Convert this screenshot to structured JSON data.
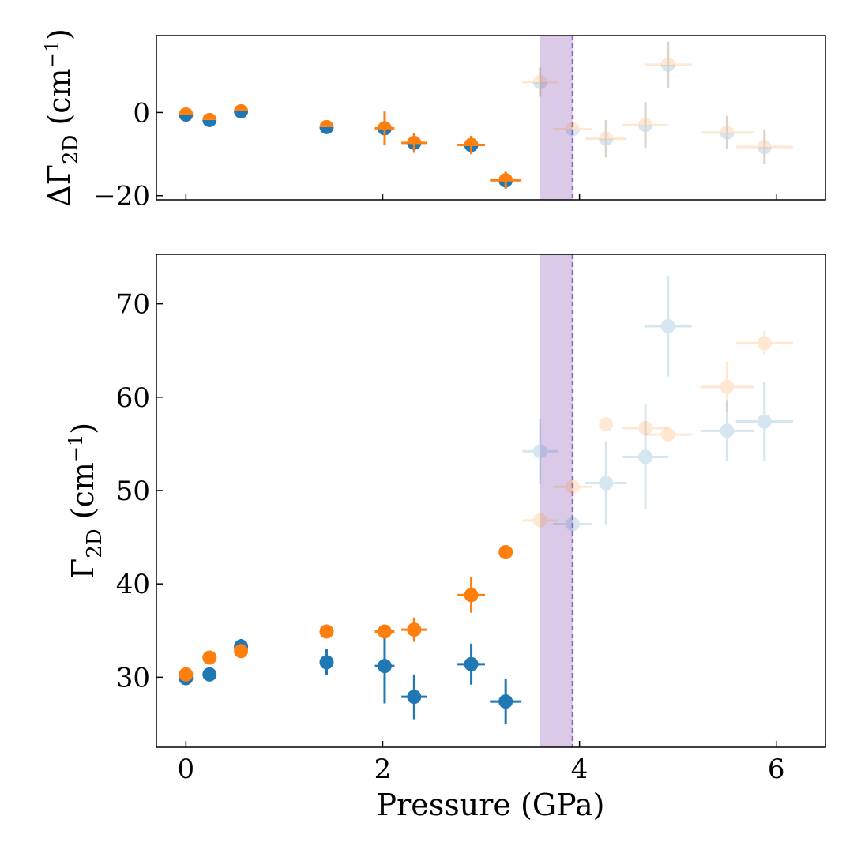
{
  "chart_data": {
    "type": "scatter",
    "colors": {
      "blue": "#1f77b4",
      "orange": "#ff7f0e",
      "band": "#9467bd"
    },
    "transition": {
      "band_range": [
        3.6,
        3.93
      ],
      "dashed_x": 3.93
    },
    "xaxis": {
      "label": "Pressure (GPa)",
      "xlim": [
        -0.3,
        6.5
      ],
      "ticks": [
        0,
        2,
        4,
        6
      ],
      "tick_labels": [
        "0",
        "2",
        "4",
        "6"
      ]
    },
    "panels": [
      {
        "id": "top",
        "ylabel_main": "ΔΓ",
        "ylabel_sub": "2D",
        "ylabel_unit": " (cm",
        "ylabel_sup": "−1",
        "ylabel_close": ")",
        "ylim": [
          -21,
          18.5
        ],
        "ticks": [
          0,
          -20
        ],
        "tick_labels": [
          "0",
          "−20"
        ],
        "series": [
          {
            "name": "blue",
            "color": "#1f77b4",
            "style": "lower-half",
            "points": [
              {
                "x": 0.0,
                "y": -0.5,
                "xerr": 0,
                "yerr": 0,
                "faded": false
              },
              {
                "x": 0.24,
                "y": -1.8,
                "xerr": 0,
                "yerr": 0,
                "faded": false
              },
              {
                "x": 0.56,
                "y": 0.3,
                "xerr": 0,
                "yerr": 0,
                "faded": false
              },
              {
                "x": 1.43,
                "y": -3.5,
                "xerr": 0,
                "yerr": 0,
                "faded": false
              },
              {
                "x": 2.02,
                "y": -3.8,
                "xerr": 0,
                "yerr": 4.0,
                "faded": false
              },
              {
                "x": 2.32,
                "y": -7.3,
                "xerr": 0,
                "yerr": 2.4,
                "faded": false
              },
              {
                "x": 2.9,
                "y": -7.8,
                "xerr": 0,
                "yerr": 2.2,
                "faded": false
              },
              {
                "x": 3.25,
                "y": -16.3,
                "xerr": 0,
                "yerr": 2.0,
                "faded": false
              },
              {
                "x": 3.6,
                "y": 7.3,
                "xerr": 0,
                "yerr": 3.5,
                "faded": true
              },
              {
                "x": 3.93,
                "y": -4.0,
                "xerr": 0,
                "yerr": 0,
                "faded": true
              },
              {
                "x": 4.27,
                "y": -6.3,
                "xerr": 0,
                "yerr": 4.5,
                "faded": true
              },
              {
                "x": 4.67,
                "y": -3.0,
                "xerr": 0,
                "yerr": 5.5,
                "faded": true
              },
              {
                "x": 4.9,
                "y": 11.5,
                "xerr": 0,
                "yerr": 5.5,
                "faded": true
              },
              {
                "x": 5.5,
                "y": -4.8,
                "xerr": 0,
                "yerr": 4.0,
                "faded": true
              },
              {
                "x": 5.88,
                "y": -8.3,
                "xerr": 0,
                "yerr": 4.0,
                "faded": true
              }
            ]
          },
          {
            "name": "orange",
            "color": "#ff7f0e",
            "style": "upper-half",
            "points": [
              {
                "x": 0.0,
                "y": -0.5,
                "xerr": 0,
                "yerr": 0,
                "faded": false
              },
              {
                "x": 0.24,
                "y": -1.8,
                "xerr": 0,
                "yerr": 0,
                "faded": false
              },
              {
                "x": 0.56,
                "y": 0.3,
                "xerr": 0,
                "yerr": 0,
                "faded": false
              },
              {
                "x": 1.43,
                "y": -3.5,
                "xerr": 0,
                "yerr": 0,
                "faded": false
              },
              {
                "x": 2.02,
                "y": -3.8,
                "xerr": 0.1,
                "yerr": 4.0,
                "faded": false
              },
              {
                "x": 2.32,
                "y": -7.3,
                "xerr": 0.13,
                "yerr": 2.4,
                "faded": false
              },
              {
                "x": 2.9,
                "y": -7.8,
                "xerr": 0.14,
                "yerr": 2.2,
                "faded": false
              },
              {
                "x": 3.25,
                "y": -16.3,
                "xerr": 0.16,
                "yerr": 2.0,
                "faded": false
              },
              {
                "x": 3.6,
                "y": 7.3,
                "xerr": 0.18,
                "yerr": 3.5,
                "faded": true
              },
              {
                "x": 3.93,
                "y": -4.0,
                "xerr": 0.2,
                "yerr": 0,
                "faded": true
              },
              {
                "x": 4.27,
                "y": -6.3,
                "xerr": 0.21,
                "yerr": 4.5,
                "faded": true
              },
              {
                "x": 4.67,
                "y": -3.0,
                "xerr": 0.23,
                "yerr": 5.5,
                "faded": true
              },
              {
                "x": 4.9,
                "y": 11.5,
                "xerr": 0.24,
                "yerr": 5.5,
                "faded": true
              },
              {
                "x": 5.5,
                "y": -4.8,
                "xerr": 0.27,
                "yerr": 4.0,
                "faded": true
              },
              {
                "x": 5.88,
                "y": -8.3,
                "xerr": 0.29,
                "yerr": 4.0,
                "faded": true
              }
            ]
          }
        ]
      },
      {
        "id": "bottom",
        "ylabel_main": "Γ",
        "ylabel_sub": "2D",
        "ylabel_unit": " (cm",
        "ylabel_sup": "−1",
        "ylabel_close": ")",
        "ylim": [
          22.5,
          75.3
        ],
        "ticks": [
          30,
          40,
          50,
          60,
          70
        ],
        "tick_labels": [
          "30",
          "40",
          "50",
          "60",
          "70"
        ],
        "series": [
          {
            "name": "blue",
            "color": "#1f77b4",
            "style": "full",
            "points": [
              {
                "x": 0.0,
                "y": 29.9,
                "xerr": 0,
                "yerr": 0,
                "faded": false
              },
              {
                "x": 0.24,
                "y": 30.3,
                "xerr": 0,
                "yerr": 0,
                "faded": false
              },
              {
                "x": 0.56,
                "y": 33.3,
                "xerr": 0,
                "yerr": 0.8,
                "faded": false
              },
              {
                "x": 1.43,
                "y": 31.6,
                "xerr": 0,
                "yerr": 1.4,
                "faded": false
              },
              {
                "x": 2.02,
                "y": 31.2,
                "xerr": 0.1,
                "yerr": 4.0,
                "faded": false
              },
              {
                "x": 2.32,
                "y": 27.9,
                "xerr": 0.13,
                "yerr": 2.4,
                "faded": false
              },
              {
                "x": 2.9,
                "y": 31.4,
                "xerr": 0.14,
                "yerr": 2.2,
                "faded": false
              },
              {
                "x": 3.25,
                "y": 27.4,
                "xerr": 0.16,
                "yerr": 2.4,
                "faded": false
              },
              {
                "x": 3.6,
                "y": 54.2,
                "xerr": 0.18,
                "yerr": 3.5,
                "faded": true
              },
              {
                "x": 3.93,
                "y": 46.4,
                "xerr": 0.2,
                "yerr": 0,
                "faded": true
              },
              {
                "x": 4.27,
                "y": 50.8,
                "xerr": 0.21,
                "yerr": 4.5,
                "faded": true
              },
              {
                "x": 4.67,
                "y": 53.6,
                "xerr": 0.23,
                "yerr": 5.6,
                "faded": true
              },
              {
                "x": 4.9,
                "y": 67.6,
                "xerr": 0.24,
                "yerr": 5.4,
                "faded": true
              },
              {
                "x": 5.5,
                "y": 56.4,
                "xerr": 0.27,
                "yerr": 3.2,
                "faded": true
              },
              {
                "x": 5.88,
                "y": 57.4,
                "xerr": 0.29,
                "yerr": 4.2,
                "faded": true
              }
            ]
          },
          {
            "name": "orange",
            "color": "#ff7f0e",
            "style": "full",
            "points": [
              {
                "x": 0.0,
                "y": 30.3,
                "xerr": 0,
                "yerr": 0,
                "faded": false
              },
              {
                "x": 0.24,
                "y": 32.1,
                "xerr": 0,
                "yerr": 0,
                "faded": false
              },
              {
                "x": 0.56,
                "y": 32.8,
                "xerr": 0,
                "yerr": 0,
                "faded": false
              },
              {
                "x": 1.43,
                "y": 34.9,
                "xerr": 0,
                "yerr": 0,
                "faded": false
              },
              {
                "x": 2.02,
                "y": 34.9,
                "xerr": 0.1,
                "yerr": 0,
                "faded": false
              },
              {
                "x": 2.32,
                "y": 35.1,
                "xerr": 0.13,
                "yerr": 1.3,
                "faded": false
              },
              {
                "x": 2.9,
                "y": 38.8,
                "xerr": 0.14,
                "yerr": 1.9,
                "faded": false
              },
              {
                "x": 3.25,
                "y": 43.4,
                "xerr": 0,
                "yerr": 0,
                "faded": false
              },
              {
                "x": 3.6,
                "y": 46.8,
                "xerr": 0.18,
                "yerr": 0,
                "faded": true
              },
              {
                "x": 3.93,
                "y": 50.4,
                "xerr": 0.2,
                "yerr": 0,
                "faded": true
              },
              {
                "x": 4.27,
                "y": 57.1,
                "xerr": 0,
                "yerr": 0,
                "faded": true
              },
              {
                "x": 4.67,
                "y": 56.7,
                "xerr": 0.23,
                "yerr": 0,
                "faded": true
              },
              {
                "x": 4.9,
                "y": 56.0,
                "xerr": 0.24,
                "yerr": 0.8,
                "faded": true
              },
              {
                "x": 5.5,
                "y": 61.1,
                "xerr": 0.27,
                "yerr": 2.7,
                "faded": true
              },
              {
                "x": 5.88,
                "y": 65.8,
                "xerr": 0.29,
                "yerr": 1.3,
                "faded": true
              }
            ]
          }
        ]
      }
    ]
  }
}
